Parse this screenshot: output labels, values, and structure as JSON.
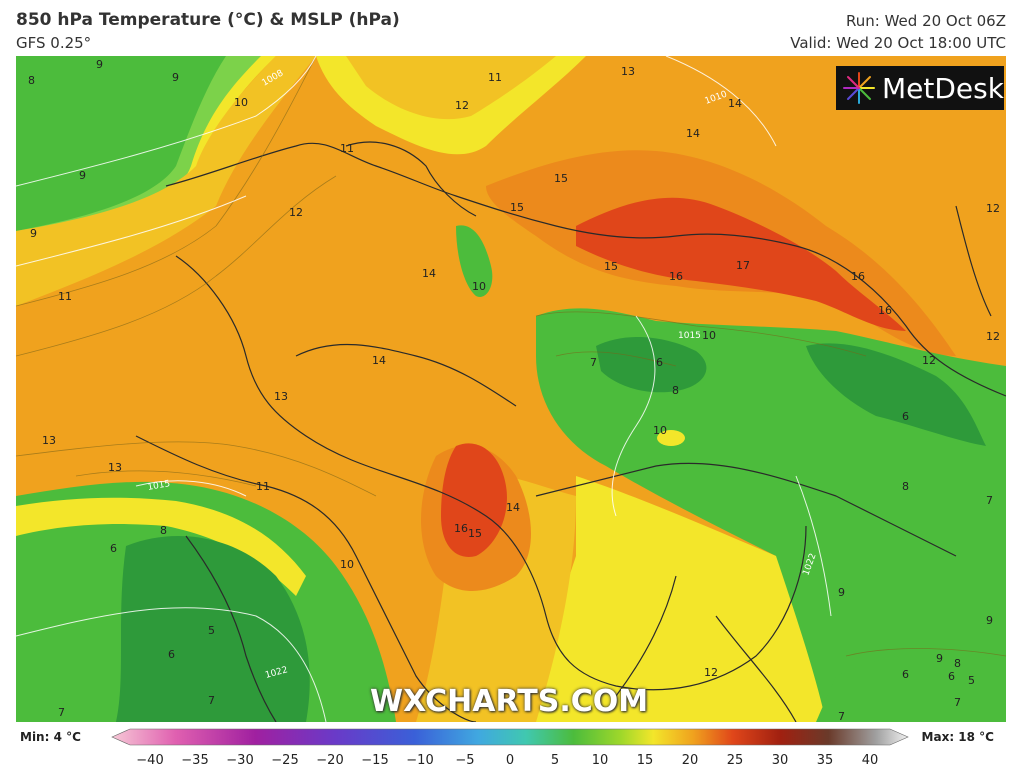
{
  "header": {
    "title": "850 hPa Temperature (°C) & MSLP (hPa)",
    "model": "GFS 0.25°",
    "run": "Run: Wed 20 Oct 06Z",
    "valid": "Valid: Wed 20 Oct 18:00 UTC"
  },
  "brand": {
    "logo_text": "MetDesk",
    "watermark": "WXCHARTS.COM"
  },
  "legend": {
    "min_label": "Min: 4 °C",
    "max_label": "Max: 18 °C",
    "ticks": [
      "−40",
      "−35",
      "−30",
      "−25",
      "−20",
      "−15",
      "−10",
      "−5",
      "0",
      "5",
      "10",
      "15",
      "20",
      "25",
      "30",
      "35",
      "40"
    ]
  },
  "colors": {
    "green_dark": "#2e9a3a",
    "green": "#4cbc3c",
    "green_light": "#7cd24a",
    "yellow": "#f3e62a",
    "yellow_orange": "#f2c224",
    "orange": "#f0a21e",
    "orange_dark": "#ec8a1c",
    "red": "#e0461a"
  },
  "temperature_labels": [
    {
      "t": "8"
    },
    {
      "t": "9"
    },
    {
      "t": "9"
    },
    {
      "t": "10"
    },
    {
      "t": "9"
    },
    {
      "t": "9"
    },
    {
      "t": "11"
    },
    {
      "t": "11"
    },
    {
      "t": "12"
    },
    {
      "t": "13"
    },
    {
      "t": "14"
    },
    {
      "t": "14"
    },
    {
      "t": "15"
    },
    {
      "t": "15"
    },
    {
      "t": "15"
    },
    {
      "t": "16"
    },
    {
      "t": "17"
    },
    {
      "t": "16"
    },
    {
      "t": "16"
    },
    {
      "t": "12"
    },
    {
      "t": "12"
    },
    {
      "t": "12"
    },
    {
      "t": "11"
    },
    {
      "t": "12"
    },
    {
      "t": "14"
    },
    {
      "t": "10"
    },
    {
      "t": "14"
    },
    {
      "t": "13"
    },
    {
      "t": "13"
    },
    {
      "t": "13"
    },
    {
      "t": "11"
    },
    {
      "t": "7"
    },
    {
      "t": "6"
    },
    {
      "t": "8"
    },
    {
      "t": "10"
    },
    {
      "t": "10"
    },
    {
      "t": "6"
    },
    {
      "t": "7"
    },
    {
      "t": "8"
    },
    {
      "t": "14"
    },
    {
      "t": "16"
    },
    {
      "t": "15"
    },
    {
      "t": "8"
    },
    {
      "t": "6"
    },
    {
      "t": "5"
    },
    {
      "t": "6"
    },
    {
      "t": "7"
    },
    {
      "t": "7"
    },
    {
      "t": "10"
    },
    {
      "t": "9"
    },
    {
      "t": "9"
    },
    {
      "t": "12"
    },
    {
      "t": "9"
    },
    {
      "t": "8"
    },
    {
      "t": "6"
    },
    {
      "t": "6"
    },
    {
      "t": "5"
    },
    {
      "t": "7"
    },
    {
      "t": "7"
    }
  ],
  "pressure_labels": [
    "1008",
    "1010",
    "1015",
    "1015",
    "1022",
    "1022"
  ]
}
